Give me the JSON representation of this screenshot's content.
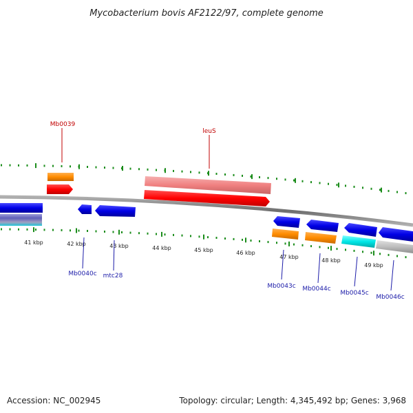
{
  "title": "Mycobacterium bovis AF2122/97, complete genome",
  "footer": {
    "accession": "Accession: NC_002945",
    "summary": "Topology: circular; Length: 4,345,492 bp; Genes: 3,968"
  },
  "colors": {
    "backbone": "#8c8c8c",
    "tick": "#1a8c1a",
    "cds_forward": "#ff0000",
    "gene_forward": "#f08080",
    "cds_reverse": "#0000e6",
    "orange_feature": "#ff8c00",
    "cyan_feature": "#00e6e6",
    "gray_feature": "#bdbdbd",
    "label_forward": "#c00000",
    "label_reverse": "#1a1aa8"
  },
  "tick_labels": [
    "41 kbp",
    "42 kbp",
    "43 kbp",
    "44 kbp",
    "45 kbp",
    "46 kbp",
    "47 kbp",
    "48 kbp",
    "49 kbp"
  ],
  "gene_labels": [
    {
      "name": "Mb0039",
      "strand": "forward"
    },
    {
      "name": "leuS",
      "strand": "forward"
    },
    {
      "name": "Mb0040c",
      "strand": "reverse"
    },
    {
      "name": "mtc28",
      "strand": "reverse"
    },
    {
      "name": "Mb0043c",
      "strand": "reverse"
    },
    {
      "name": "Mb0044c",
      "strand": "reverse"
    },
    {
      "name": "Mb0045c",
      "strand": "reverse"
    },
    {
      "name": "Mb0046c",
      "strand": "reverse"
    }
  ]
}
